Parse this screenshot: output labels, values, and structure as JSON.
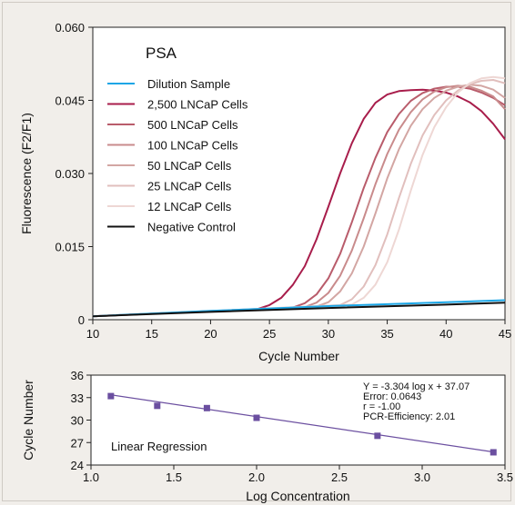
{
  "chart_data": [
    {
      "type": "line",
      "title": "PSA",
      "xlabel": "Cycle Number",
      "ylabel": "Fluorescence (F2/F1)",
      "xlim": [
        10,
        45
      ],
      "ylim": [
        0,
        0.06
      ],
      "xticks": [
        "10",
        "15",
        "20",
        "25",
        "30",
        "35",
        "40",
        "45"
      ],
      "yticks": [
        "0",
        "0.015",
        "0.030",
        "0.045",
        "0.060"
      ],
      "legend_position": "top-left",
      "series": [
        {
          "name": "Dilution Sample",
          "color": "#1ba6e6",
          "x": [
            10,
            20,
            30,
            40,
            45
          ],
          "y": [
            0.0007,
            0.0018,
            0.0028,
            0.0036,
            0.004
          ]
        },
        {
          "name": "2,500 LNCaP Cells",
          "color": "#a81d4b",
          "x": [
            10,
            24,
            25,
            26,
            27,
            28,
            29,
            30,
            31,
            32,
            33,
            34,
            35,
            36,
            37,
            38,
            39,
            40,
            41,
            42,
            43,
            44,
            45
          ],
          "y": [
            0.0007,
            0.0022,
            0.003,
            0.0045,
            0.0072,
            0.011,
            0.0165,
            0.0232,
            0.03,
            0.0362,
            0.0412,
            0.0445,
            0.0462,
            0.0469,
            0.0471,
            0.0472,
            0.047,
            0.0466,
            0.0458,
            0.0446,
            0.0428,
            0.0402,
            0.037
          ]
        },
        {
          "name": "500 LNCaP Cells",
          "color": "#b95c6b",
          "x": [
            10,
            27,
            28,
            29,
            30,
            31,
            32,
            33,
            34,
            35,
            36,
            37,
            38,
            39,
            40,
            41,
            42,
            43,
            44,
            45
          ],
          "y": [
            0.0007,
            0.0025,
            0.0034,
            0.0052,
            0.0085,
            0.0135,
            0.02,
            0.027,
            0.0332,
            0.0385,
            0.0422,
            0.0449,
            0.0465,
            0.0474,
            0.0478,
            0.0478,
            0.0474,
            0.0466,
            0.0455,
            0.044
          ]
        },
        {
          "name": "100 LNCaP Cells",
          "color": "#c98b8c",
          "x": [
            10,
            28,
            29,
            30,
            31,
            32,
            33,
            34,
            35,
            36,
            37,
            38,
            39,
            40,
            41,
            42,
            43,
            44,
            45
          ],
          "y": [
            0.0007,
            0.0026,
            0.0035,
            0.0055,
            0.009,
            0.0142,
            0.0208,
            0.0278,
            0.034,
            0.039,
            0.0426,
            0.0452,
            0.0468,
            0.0477,
            0.048,
            0.0478,
            0.047,
            0.0458,
            0.0432
          ]
        },
        {
          "name": "50 LNCaP Cells",
          "color": "#d3a6a3",
          "x": [
            10,
            29,
            30,
            31,
            32,
            33,
            34,
            35,
            36,
            37,
            38,
            39,
            40,
            41,
            42,
            43,
            44,
            45
          ],
          "y": [
            0.0007,
            0.0027,
            0.0036,
            0.0058,
            0.0095,
            0.015,
            0.0218,
            0.029,
            0.035,
            0.0398,
            0.0432,
            0.0455,
            0.047,
            0.0478,
            0.0482,
            0.048,
            0.0472,
            0.0455
          ]
        },
        {
          "name": "25 LNCaP Cells",
          "color": "#e1bfbd",
          "x": [
            10,
            31,
            32,
            33,
            34,
            35,
            36,
            37,
            38,
            39,
            40,
            41,
            42,
            43,
            44,
            45
          ],
          "y": [
            0.0007,
            0.003,
            0.0042,
            0.0068,
            0.0112,
            0.0175,
            0.025,
            0.032,
            0.0378,
            0.042,
            0.045,
            0.047,
            0.0483,
            0.049,
            0.0492,
            0.0485
          ]
        },
        {
          "name": "12 LNCaP Cells",
          "color": "#eed7d4",
          "x": [
            10,
            32,
            33,
            34,
            35,
            36,
            37,
            38,
            39,
            40,
            41,
            42,
            43,
            44,
            45
          ],
          "y": [
            0.0007,
            0.0031,
            0.0045,
            0.0072,
            0.0118,
            0.0185,
            0.0265,
            0.0338,
            0.0395,
            0.0436,
            0.0466,
            0.0485,
            0.0495,
            0.0498,
            0.0495
          ]
        },
        {
          "name": "Negative Control",
          "color": "#111111",
          "x": [
            10,
            20,
            30,
            40,
            45
          ],
          "y": [
            0.0007,
            0.0016,
            0.0024,
            0.0031,
            0.0035
          ]
        }
      ]
    },
    {
      "type": "scatter",
      "title": "Linear Regression",
      "xlabel": "Log Concentration",
      "ylabel": "Cycle Number",
      "xlim": [
        1.0,
        3.5
      ],
      "ylim": [
        24,
        36
      ],
      "xticks": [
        "1.0",
        "1.5",
        "2.0",
        "2.5",
        "3.0",
        "3.5"
      ],
      "yticks": [
        "24",
        "27",
        "30",
        "33",
        "36"
      ],
      "points": {
        "x": [
          1.12,
          1.4,
          1.7,
          2.0,
          2.73,
          3.43
        ],
        "y": [
          33.2,
          31.9,
          31.6,
          30.3,
          27.9,
          25.7
        ]
      },
      "fit": {
        "x": [
          1.12,
          3.43
        ],
        "y": [
          33.37,
          25.74
        ]
      },
      "annotations": [
        "Y = -3.304 log x + 37.07",
        "Error: 0.0643",
        "r = -1.00",
        "PCR-Efficiency: 2.01"
      ],
      "point_color": "#6b4fa0",
      "line_color": "#6b4fa0"
    }
  ]
}
